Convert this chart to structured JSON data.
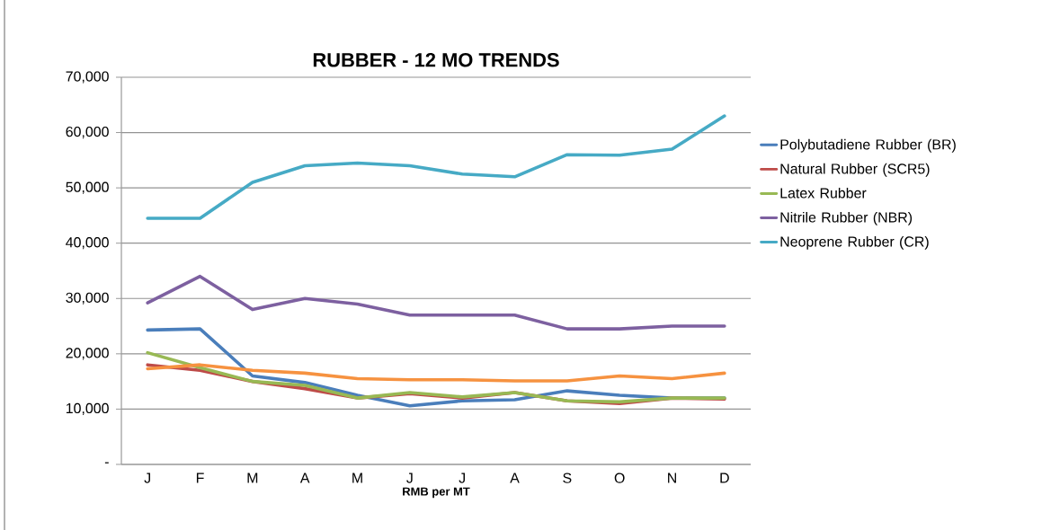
{
  "chart_data": {
    "type": "line",
    "title": "RUBBER - 12 MO TRENDS",
    "xlabel": "RMB per MT",
    "categories": [
      "J",
      "F",
      "M",
      "A",
      "M",
      "J",
      "J",
      "A",
      "S",
      "O",
      "N",
      "D"
    ],
    "series": [
      {
        "name": "Polybutadiene Rubber (BR)",
        "color": "#4a7ebb",
        "values": [
          24300,
          24500,
          16000,
          14800,
          12500,
          10600,
          11500,
          11700,
          13300,
          12500,
          12000,
          12000
        ]
      },
      {
        "name": "Natural Rubber (SCR5)",
        "color": "#be4b48",
        "values": [
          18000,
          17000,
          15000,
          13700,
          12000,
          12800,
          12000,
          13000,
          11500,
          11000,
          12000,
          11800
        ]
      },
      {
        "name": "Latex Rubber",
        "color": "#98b954",
        "values": [
          20200,
          17500,
          15000,
          14300,
          12000,
          13000,
          12200,
          13000,
          11500,
          11300,
          12000,
          12000
        ]
      },
      {
        "name": "Nitrile Rubber  (NBR)",
        "color": "#7d60a0",
        "values": [
          29200,
          34000,
          28000,
          30000,
          29000,
          27000,
          27000,
          27000,
          24500,
          24500,
          25000,
          25000
        ]
      },
      {
        "name": "Neoprene Rubber (CR)",
        "color": "#46aac5",
        "values": [
          44500,
          44500,
          51000,
          54000,
          54500,
          54000,
          52500,
          52000,
          56000,
          55900,
          57000,
          63000
        ]
      },
      {
        "color": "#f69240",
        "values": [
          17300,
          18000,
          17000,
          16500,
          15500,
          15300,
          15300,
          15100,
          15100,
          16000,
          15500,
          16500
        ]
      }
    ],
    "ylim": [
      0,
      70000
    ],
    "yticks": [
      {
        "value": 0,
        "label": "-"
      },
      {
        "value": 10000,
        "label": "10,000"
      },
      {
        "value": 20000,
        "label": "20,000"
      },
      {
        "value": 30000,
        "label": "30,000"
      },
      {
        "value": 40000,
        "label": "40,000"
      },
      {
        "value": 50000,
        "label": "50,000"
      },
      {
        "value": 60000,
        "label": "60,000"
      },
      {
        "value": 70000,
        "label": "70,000"
      }
    ],
    "grid": "y",
    "legend": "right",
    "marker": "none",
    "line_style": "solid"
  }
}
